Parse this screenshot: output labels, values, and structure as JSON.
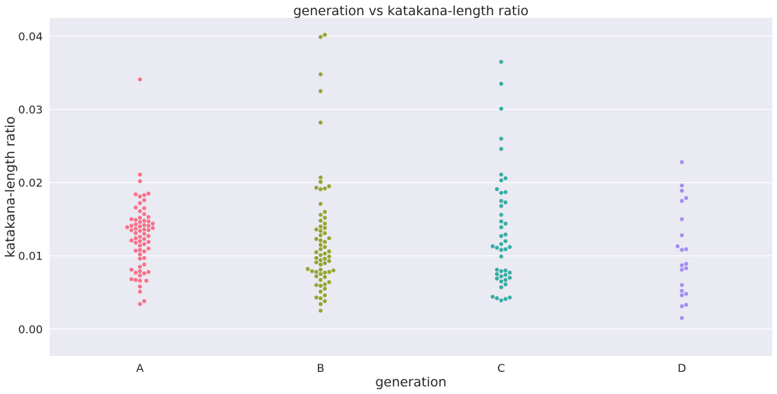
{
  "chart_data": {
    "type": "scatter",
    "subtype": "swarm",
    "title": "generation vs katakana-length ratio",
    "xlabel": "generation",
    "ylabel": "katakana-length ratio",
    "categories": [
      "A",
      "B",
      "C",
      "D"
    ],
    "ylim": [
      -0.0037,
      0.0425
    ],
    "yticks": [
      "0.00",
      "0.01",
      "0.02",
      "0.03",
      "0.04"
    ],
    "grid": true,
    "background": "#eaeaf2",
    "gridColor": "#ffffff",
    "series": [
      {
        "category": "A",
        "color": "#f77189",
        "values": [
          0.0341,
          0.0211,
          0.0202,
          0.0185,
          0.0184,
          0.0183,
          0.0181,
          0.0176,
          0.0172,
          0.0166,
          0.0165,
          0.0161,
          0.0157,
          0.0153,
          0.0152,
          0.015,
          0.0149,
          0.0148,
          0.0147,
          0.0146,
          0.0144,
          0.0143,
          0.0142,
          0.0141,
          0.0141,
          0.014,
          0.0139,
          0.0138,
          0.0137,
          0.0136,
          0.0135,
          0.0135,
          0.0134,
          0.0131,
          0.013,
          0.0127,
          0.0126,
          0.0124,
          0.0123,
          0.0121,
          0.012,
          0.0119,
          0.0118,
          0.0116,
          0.0114,
          0.011,
          0.0108,
          0.0107,
          0.0106,
          0.0102,
          0.0097,
          0.0096,
          0.0088,
          0.0085,
          0.0081,
          0.0079,
          0.0078,
          0.0077,
          0.0076,
          0.0073,
          0.0068,
          0.0067,
          0.0066,
          0.0066,
          0.0058,
          0.0051,
          0.0038,
          0.0034
        ]
      },
      {
        "category": "B",
        "color": "#97a431",
        "values": [
          0.0402,
          0.0399,
          0.0348,
          0.0325,
          0.0282,
          0.0207,
          0.0201,
          0.0195,
          0.0193,
          0.0192,
          0.0191,
          0.0171,
          0.016,
          0.0156,
          0.0152,
          0.0148,
          0.0144,
          0.014,
          0.0138,
          0.0136,
          0.0134,
          0.0131,
          0.0128,
          0.0124,
          0.0123,
          0.0121,
          0.0119,
          0.0115,
          0.0112,
          0.0109,
          0.0106,
          0.0105,
          0.0103,
          0.0101,
          0.0099,
          0.0097,
          0.0096,
          0.0094,
          0.0093,
          0.0091,
          0.009,
          0.0088,
          0.0082,
          0.0081,
          0.008,
          0.0079,
          0.0078,
          0.0078,
          0.0077,
          0.0075,
          0.0072,
          0.0071,
          0.0067,
          0.0064,
          0.0061,
          0.006,
          0.0059,
          0.0055,
          0.0051,
          0.0046,
          0.0043,
          0.0042,
          0.0038,
          0.0034,
          0.0025
        ]
      },
      {
        "category": "C",
        "color": "#36ada4",
        "values": [
          0.0365,
          0.0335,
          0.0301,
          0.026,
          0.0246,
          0.0211,
          0.0206,
          0.0203,
          0.0191,
          0.0187,
          0.0186,
          0.0175,
          0.0173,
          0.0168,
          0.0156,
          0.0147,
          0.0144,
          0.0139,
          0.0129,
          0.0127,
          0.012,
          0.0116,
          0.0113,
          0.0112,
          0.0111,
          0.0109,
          0.0108,
          0.0099,
          0.0081,
          0.008,
          0.0079,
          0.0077,
          0.0075,
          0.0074,
          0.0072,
          0.007,
          0.0069,
          0.0067,
          0.0065,
          0.0061,
          0.0057,
          0.0044,
          0.0043,
          0.0042,
          0.0041,
          0.0039
        ]
      },
      {
        "category": "D",
        "color": "#a48cf4",
        "values": [
          0.0228,
          0.0196,
          0.0189,
          0.0179,
          0.0175,
          0.015,
          0.0128,
          0.0113,
          0.0109,
          0.0108,
          0.0089,
          0.0087,
          0.0083,
          0.0081,
          0.006,
          0.0052,
          0.0048,
          0.0046,
          0.0033,
          0.0031,
          0.0015
        ]
      }
    ]
  }
}
